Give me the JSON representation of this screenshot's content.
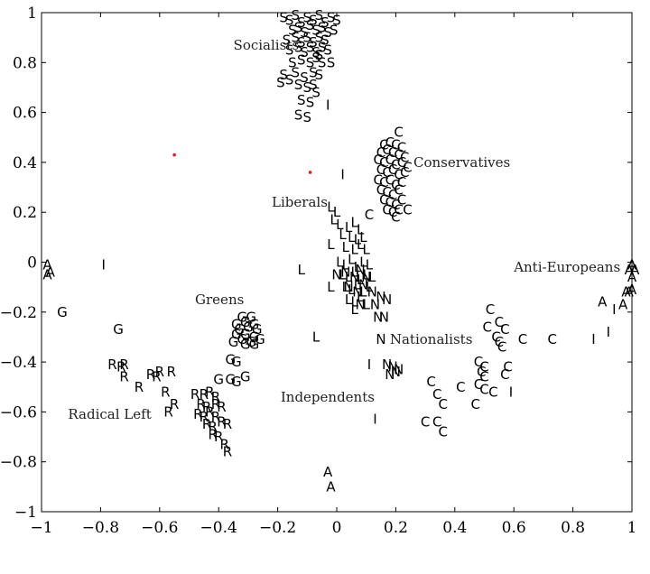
{
  "chart_data": {
    "type": "scatter",
    "title": "",
    "xlabel": "",
    "ylabel": "",
    "xlim": [
      -1,
      1
    ],
    "ylim": [
      -1,
      1
    ],
    "grid": false,
    "x_ticks": [
      -1,
      -0.8,
      -0.6,
      -0.4,
      -0.2,
      0,
      0.2,
      0.4,
      0.6,
      0.8,
      1
    ],
    "y_ticks": [
      -1,
      -0.8,
      -0.6,
      -0.4,
      -0.2,
      0,
      0.2,
      0.4,
      0.6,
      0.8,
      1
    ],
    "x_tick_labels": [
      "−1",
      "−0.8",
      "−0.6",
      "−0.4",
      "−0.2",
      "0",
      "0.2",
      "0.4",
      "0.6",
      "0.8",
      "1"
    ],
    "y_tick_labels": [
      "−1",
      "−0.8",
      "−0.6",
      "−0.4",
      "−0.2",
      "0",
      "0.2",
      "0.4",
      "0.6",
      "0.8",
      "1"
    ],
    "point_color": "#000000",
    "marker_color": "#e02020",
    "group_labels": [
      {
        "text": "Socialists",
        "x": -0.35,
        "y": 0.87
      },
      {
        "text": "Conservatives",
        "x": 0.26,
        "y": 0.4
      },
      {
        "text": "Liberals",
        "x": -0.22,
        "y": 0.24
      },
      {
        "text": "Anti-Europeans",
        "x": 0.6,
        "y": -0.02
      },
      {
        "text": "Greens",
        "x": -0.48,
        "y": -0.15
      },
      {
        "text": "Nationalists",
        "x": 0.18,
        "y": -0.31
      },
      {
        "text": "Independents",
        "x": -0.19,
        "y": -0.54
      },
      {
        "text": "Radical Left",
        "x": -0.91,
        "y": -0.61
      }
    ],
    "markers": [
      {
        "x": -0.55,
        "y": 0.43
      },
      {
        "x": -0.09,
        "y": 0.36
      }
    ],
    "series": [
      {
        "letter": "S",
        "points": [
          [
            -0.18,
            0.98
          ],
          [
            -0.16,
            0.97
          ],
          [
            -0.14,
            0.99
          ],
          [
            -0.12,
            0.96
          ],
          [
            -0.1,
            0.98
          ],
          [
            -0.08,
            0.97
          ],
          [
            -0.06,
            0.99
          ],
          [
            -0.04,
            0.96
          ],
          [
            -0.02,
            0.98
          ],
          [
            0.0,
            0.97
          ],
          [
            -0.15,
            0.93
          ],
          [
            -0.13,
            0.94
          ],
          [
            -0.11,
            0.92
          ],
          [
            -0.09,
            0.95
          ],
          [
            -0.07,
            0.93
          ],
          [
            -0.05,
            0.94
          ],
          [
            -0.03,
            0.92
          ],
          [
            -0.01,
            0.93
          ],
          [
            -0.17,
            0.89
          ],
          [
            -0.14,
            0.9
          ],
          [
            -0.12,
            0.88
          ],
          [
            -0.1,
            0.9
          ],
          [
            -0.08,
            0.88
          ],
          [
            -0.06,
            0.9
          ],
          [
            -0.04,
            0.89
          ],
          [
            -0.16,
            0.85
          ],
          [
            -0.13,
            0.86
          ],
          [
            -0.11,
            0.84
          ],
          [
            -0.09,
            0.86
          ],
          [
            -0.07,
            0.84
          ],
          [
            -0.05,
            0.86
          ],
          [
            -0.15,
            0.8
          ],
          [
            -0.12,
            0.81
          ],
          [
            -0.09,
            0.8
          ],
          [
            -0.07,
            0.82
          ],
          [
            -0.05,
            0.8
          ],
          [
            -0.18,
            0.75
          ],
          [
            -0.14,
            0.76
          ],
          [
            -0.11,
            0.74
          ],
          [
            -0.08,
            0.76
          ],
          [
            -0.06,
            0.75
          ],
          [
            -0.19,
            0.72
          ],
          [
            -0.16,
            0.73
          ],
          [
            -0.13,
            0.71
          ],
          [
            -0.1,
            0.7
          ],
          [
            -0.08,
            0.71
          ],
          [
            -0.12,
            0.65
          ],
          [
            -0.09,
            0.64
          ],
          [
            -0.07,
            0.68
          ],
          [
            -0.13,
            0.59
          ],
          [
            -0.1,
            0.58
          ],
          [
            -0.06,
            0.83
          ],
          [
            -0.03,
            0.85
          ],
          [
            -0.02,
            0.8
          ]
        ]
      },
      {
        "letter": "C",
        "points": [
          [
            0.21,
            0.52
          ],
          [
            0.16,
            0.47
          ],
          [
            0.18,
            0.48
          ],
          [
            0.2,
            0.47
          ],
          [
            0.22,
            0.46
          ],
          [
            0.15,
            0.44
          ],
          [
            0.17,
            0.45
          ],
          [
            0.19,
            0.44
          ],
          [
            0.21,
            0.43
          ],
          [
            0.23,
            0.42
          ],
          [
            0.14,
            0.41
          ],
          [
            0.16,
            0.4
          ],
          [
            0.18,
            0.41
          ],
          [
            0.2,
            0.39
          ],
          [
            0.22,
            0.4
          ],
          [
            0.24,
            0.38
          ],
          [
            0.15,
            0.37
          ],
          [
            0.17,
            0.36
          ],
          [
            0.19,
            0.37
          ],
          [
            0.21,
            0.35
          ],
          [
            0.23,
            0.36
          ],
          [
            0.14,
            0.33
          ],
          [
            0.16,
            0.32
          ],
          [
            0.18,
            0.33
          ],
          [
            0.2,
            0.31
          ],
          [
            0.22,
            0.32
          ],
          [
            0.15,
            0.29
          ],
          [
            0.17,
            0.28
          ],
          [
            0.19,
            0.27
          ],
          [
            0.21,
            0.29
          ],
          [
            0.16,
            0.25
          ],
          [
            0.18,
            0.24
          ],
          [
            0.2,
            0.23
          ],
          [
            0.22,
            0.25
          ],
          [
            0.17,
            0.21
          ],
          [
            0.19,
            0.2
          ],
          [
            0.21,
            0.21
          ],
          [
            0.24,
            0.21
          ],
          [
            0.11,
            0.19
          ],
          [
            0.2,
            0.18
          ],
          [
            0.52,
            -0.19
          ],
          [
            0.51,
            -0.26
          ],
          [
            0.55,
            -0.24
          ],
          [
            0.57,
            -0.27
          ],
          [
            0.54,
            -0.3
          ],
          [
            0.55,
            -0.32
          ],
          [
            0.56,
            -0.34
          ],
          [
            0.63,
            -0.31
          ],
          [
            0.73,
            -0.31
          ],
          [
            0.48,
            -0.4
          ],
          [
            0.5,
            -0.42
          ],
          [
            0.49,
            -0.44
          ],
          [
            0.5,
            -0.46
          ],
          [
            0.48,
            -0.49
          ],
          [
            0.5,
            -0.51
          ],
          [
            0.53,
            -0.52
          ],
          [
            0.58,
            -0.42
          ],
          [
            0.57,
            -0.45
          ],
          [
            0.32,
            -0.48
          ],
          [
            0.34,
            -0.53
          ],
          [
            0.36,
            -0.57
          ],
          [
            0.42,
            -0.5
          ],
          [
            0.47,
            -0.57
          ],
          [
            0.3,
            -0.64
          ],
          [
            0.34,
            -0.64
          ],
          [
            0.36,
            -0.68
          ]
        ]
      },
      {
        "letter": "L",
        "points": [
          [
            -0.02,
            0.22
          ],
          [
            0.0,
            0.2
          ],
          [
            -0.01,
            0.17
          ],
          [
            0.01,
            0.15
          ],
          [
            0.04,
            0.14
          ],
          [
            0.06,
            0.16
          ],
          [
            0.08,
            0.13
          ],
          [
            0.02,
            0.11
          ],
          [
            0.05,
            0.1
          ],
          [
            0.07,
            0.09
          ],
          [
            0.09,
            0.1
          ],
          [
            -0.02,
            0.07
          ],
          [
            0.03,
            0.06
          ],
          [
            0.06,
            0.05
          ],
          [
            0.08,
            0.07
          ],
          [
            0.1,
            0.05
          ],
          [
            0.01,
            0.0
          ],
          [
            0.03,
            -0.01
          ],
          [
            0.05,
            0.01
          ],
          [
            0.07,
            -0.02
          ],
          [
            0.09,
            0.0
          ],
          [
            0.11,
            -0.01
          ],
          [
            0.02,
            -0.05
          ],
          [
            0.04,
            -0.06
          ],
          [
            0.06,
            -0.04
          ],
          [
            0.08,
            -0.07
          ],
          [
            0.1,
            -0.05
          ],
          [
            0.12,
            -0.06
          ],
          [
            0.03,
            -0.1
          ],
          [
            0.05,
            -0.11
          ],
          [
            0.07,
            -0.09
          ],
          [
            0.09,
            -0.12
          ],
          [
            0.11,
            -0.1
          ],
          [
            0.04,
            -0.15
          ],
          [
            0.06,
            -0.16
          ],
          [
            0.08,
            -0.14
          ],
          [
            0.1,
            -0.17
          ],
          [
            0.06,
            -0.19
          ],
          [
            -0.12,
            -0.03
          ],
          [
            -0.02,
            -0.1
          ],
          [
            -0.07,
            -0.3
          ]
        ]
      },
      {
        "letter": "N",
        "points": [
          [
            0.0,
            -0.05
          ],
          [
            0.03,
            -0.04
          ],
          [
            0.06,
            -0.06
          ],
          [
            0.08,
            -0.03
          ],
          [
            0.1,
            -0.06
          ],
          [
            0.04,
            -0.1
          ],
          [
            0.07,
            -0.12
          ],
          [
            0.09,
            -0.09
          ],
          [
            0.12,
            -0.12
          ],
          [
            0.15,
            -0.14
          ],
          [
            0.17,
            -0.15
          ],
          [
            0.08,
            -0.17
          ],
          [
            0.13,
            -0.17
          ],
          [
            0.14,
            -0.22
          ],
          [
            0.16,
            -0.22
          ],
          [
            0.15,
            -0.31
          ],
          [
            0.17,
            -0.41
          ],
          [
            0.19,
            -0.42
          ],
          [
            0.21,
            -0.43
          ],
          [
            0.18,
            -0.45
          ],
          [
            0.2,
            -0.44
          ]
        ]
      },
      {
        "letter": "G",
        "points": [
          [
            -0.32,
            -0.22
          ],
          [
            -0.29,
            -0.22
          ],
          [
            -0.34,
            -0.25
          ],
          [
            -0.31,
            -0.24
          ],
          [
            -0.28,
            -0.25
          ],
          [
            -0.33,
            -0.27
          ],
          [
            -0.3,
            -0.26
          ],
          [
            -0.27,
            -0.27
          ],
          [
            -0.34,
            -0.29
          ],
          [
            -0.31,
            -0.29
          ],
          [
            -0.28,
            -0.3
          ],
          [
            -0.32,
            -0.31
          ],
          [
            -0.29,
            -0.32
          ],
          [
            -0.26,
            -0.31
          ],
          [
            -0.35,
            -0.32
          ],
          [
            -0.31,
            -0.33
          ],
          [
            -0.28,
            -0.33
          ],
          [
            -0.36,
            -0.39
          ],
          [
            -0.34,
            -0.4
          ],
          [
            -0.4,
            -0.47
          ],
          [
            -0.36,
            -0.47
          ],
          [
            -0.34,
            -0.48
          ],
          [
            -0.31,
            -0.46
          ],
          [
            -0.93,
            -0.2
          ],
          [
            -0.74,
            -0.27
          ]
        ]
      },
      {
        "letter": "R",
        "points": [
          [
            -0.76,
            -0.41
          ],
          [
            -0.72,
            -0.41
          ],
          [
            -0.73,
            -0.42
          ],
          [
            -0.72,
            -0.46
          ],
          [
            -0.63,
            -0.45
          ],
          [
            -0.61,
            -0.46
          ],
          [
            -0.6,
            -0.44
          ],
          [
            -0.56,
            -0.44
          ],
          [
            -0.67,
            -0.5
          ],
          [
            -0.58,
            -0.52
          ],
          [
            -0.55,
            -0.57
          ],
          [
            -0.57,
            -0.6
          ],
          [
            -0.48,
            -0.53
          ],
          [
            -0.45,
            -0.53
          ],
          [
            -0.43,
            -0.52
          ],
          [
            -0.41,
            -0.54
          ],
          [
            -0.46,
            -0.57
          ],
          [
            -0.44,
            -0.58
          ],
          [
            -0.41,
            -0.57
          ],
          [
            -0.39,
            -0.58
          ],
          [
            -0.47,
            -0.61
          ],
          [
            -0.45,
            -0.62
          ],
          [
            -0.43,
            -0.6
          ],
          [
            -0.41,
            -0.62
          ],
          [
            -0.44,
            -0.65
          ],
          [
            -0.42,
            -0.66
          ],
          [
            -0.39,
            -0.64
          ],
          [
            -0.37,
            -0.65
          ],
          [
            -0.42,
            -0.69
          ],
          [
            -0.4,
            -0.7
          ],
          [
            -0.38,
            -0.73
          ],
          [
            -0.37,
            -0.76
          ]
        ]
      },
      {
        "letter": "A",
        "points": [
          [
            -0.98,
            -0.01
          ],
          [
            -0.97,
            -0.04
          ],
          [
            -0.98,
            -0.05
          ],
          [
            1.0,
            -0.01
          ],
          [
            1.01,
            -0.03
          ],
          [
            0.99,
            -0.03
          ],
          [
            1.0,
            -0.06
          ],
          [
            1.0,
            -0.11
          ],
          [
            0.99,
            -0.12
          ],
          [
            0.98,
            -0.12
          ],
          [
            0.9,
            -0.16
          ],
          [
            0.97,
            -0.17
          ],
          [
            -0.03,
            -0.84
          ],
          [
            -0.02,
            -0.9
          ]
        ]
      },
      {
        "letter": "I",
        "points": [
          [
            -0.79,
            -0.01
          ],
          [
            -0.03,
            0.63
          ],
          [
            0.02,
            0.35
          ],
          [
            0.11,
            -0.41
          ],
          [
            0.13,
            -0.63
          ],
          [
            0.59,
            -0.52
          ],
          [
            0.87,
            -0.31
          ],
          [
            0.92,
            -0.28
          ],
          [
            0.94,
            -0.19
          ]
        ]
      }
    ]
  }
}
